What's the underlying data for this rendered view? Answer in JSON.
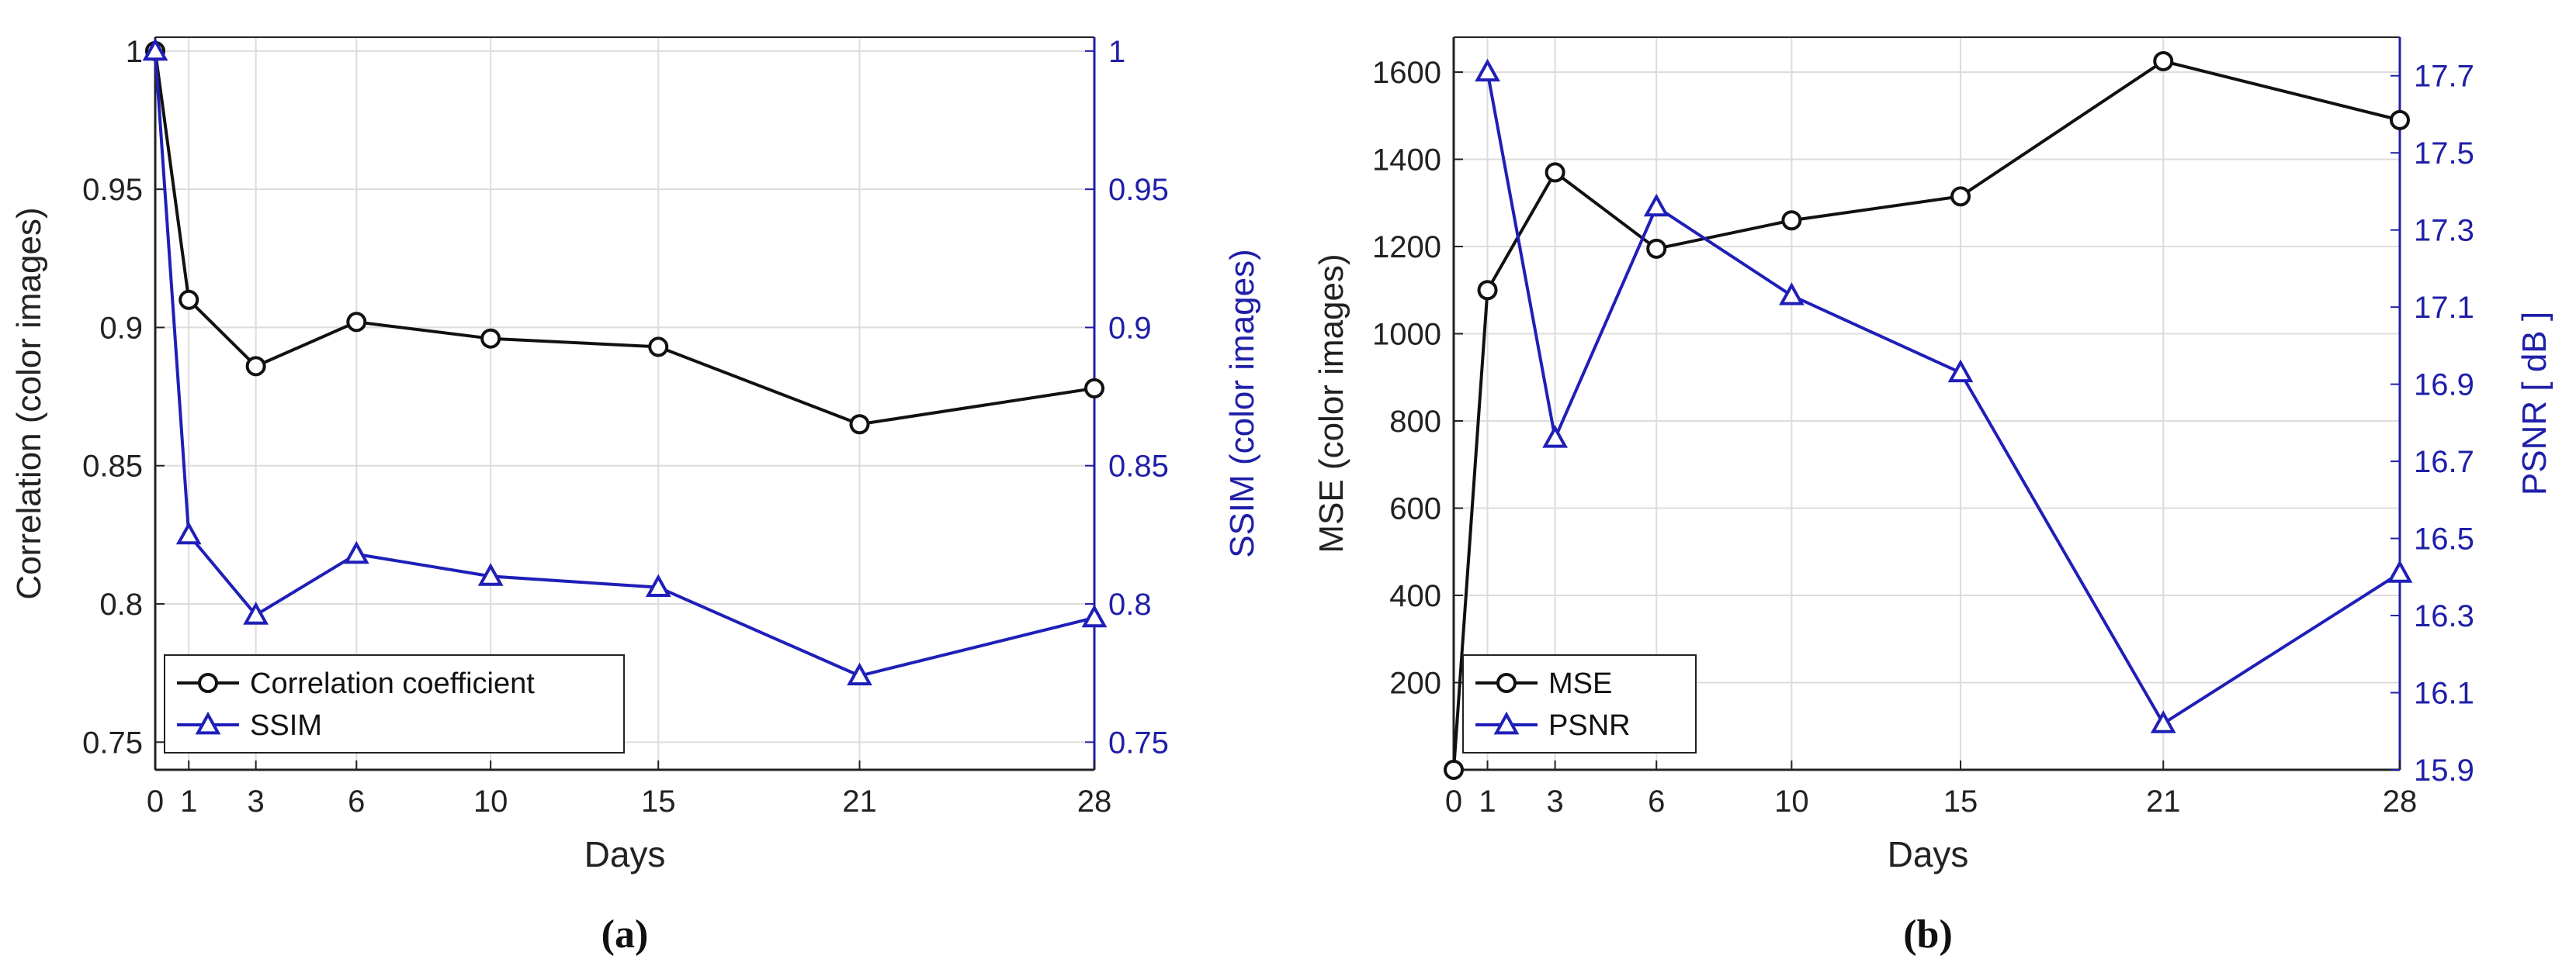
{
  "colors": {
    "left_axis": "#222222",
    "right_axis": "#1f1fa8",
    "series_left": "#111111",
    "series_right": "#1f1fb8",
    "grid": "#dcdcdc"
  },
  "chart_data": [
    {
      "type": "line",
      "panel_label": "(a)",
      "xlabel": "Days",
      "x": [
        0,
        1,
        3,
        6,
        10,
        15,
        21,
        28
      ],
      "xticks": [
        "0",
        "1",
        "3",
        "6",
        "10",
        "15",
        "21",
        "28"
      ],
      "xlim": [
        0,
        28
      ],
      "ylabel_left": "Correlation (color images)",
      "ylabel_right": "SSIM (color images)",
      "ylim_left": [
        0.74,
        1.005
      ],
      "ylim_right": [
        0.74,
        1.005
      ],
      "yticks_left": [
        "0.75",
        "0.8",
        "0.85",
        "0.9",
        "0.95",
        "1"
      ],
      "yticks_right": [
        "0.75",
        "0.8",
        "0.85",
        "0.9",
        "0.95",
        "1"
      ],
      "ytick_values_left": [
        0.75,
        0.8,
        0.85,
        0.9,
        0.95,
        1.0
      ],
      "ytick_values_right": [
        0.75,
        0.8,
        0.85,
        0.9,
        0.95,
        1.0
      ],
      "grid": true,
      "legend_position": "bottom-left",
      "series": [
        {
          "name": "Correlation coefficient",
          "axis": "left",
          "marker": "circle",
          "values": [
            1.0,
            0.91,
            0.886,
            0.902,
            0.896,
            0.893,
            0.865,
            0.878
          ]
        },
        {
          "name": "SSIM",
          "axis": "right",
          "marker": "triangle",
          "values": [
            1.0,
            0.825,
            0.796,
            0.818,
            0.81,
            0.806,
            0.774,
            0.795
          ]
        }
      ]
    },
    {
      "type": "line",
      "panel_label": "(b)",
      "xlabel": "Days",
      "x": [
        0,
        1,
        3,
        6,
        10,
        15,
        21,
        28
      ],
      "xticks": [
        "0",
        "1",
        "3",
        "6",
        "10",
        "15",
        "21",
        "28"
      ],
      "xlim": [
        0,
        28
      ],
      "ylabel_left": "MSE (color images)",
      "ylabel_right": "PSNR [ dB ]",
      "ylim_left": [
        0,
        1680
      ],
      "ylim_right": [
        15.9,
        17.8
      ],
      "yticks_left": [
        "200",
        "400",
        "600",
        "800",
        "1000",
        "1200",
        "1400",
        "1600"
      ],
      "yticks_right": [
        "15.9",
        "16.1",
        "16.3",
        "16.5",
        "16.7",
        "16.9",
        "17.1",
        "17.3",
        "17.5",
        "17.7"
      ],
      "ytick_values_left": [
        200,
        400,
        600,
        800,
        1000,
        1200,
        1400,
        1600
      ],
      "ytick_values_right": [
        15.9,
        16.1,
        16.3,
        16.5,
        16.7,
        16.9,
        17.1,
        17.3,
        17.5,
        17.7
      ],
      "grid": true,
      "legend_position": "bottom-left",
      "series": [
        {
          "name": "MSE",
          "axis": "left",
          "marker": "circle",
          "values": [
            0,
            1100,
            1370,
            1195,
            1260,
            1315,
            1625,
            1490
          ]
        },
        {
          "name": "PSNR",
          "axis": "right",
          "marker": "triangle",
          "x": [
            1,
            3,
            6,
            10,
            15,
            21,
            28
          ],
          "values": [
            17.71,
            16.76,
            17.36,
            17.13,
            16.93,
            16.02,
            16.41
          ]
        }
      ]
    }
  ]
}
